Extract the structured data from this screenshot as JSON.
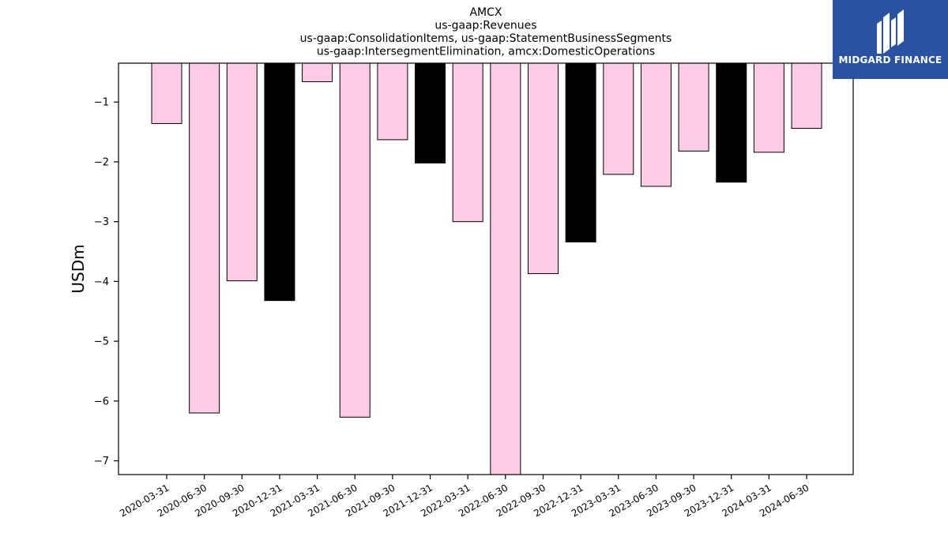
{
  "brand": {
    "name": "MIDGARD FINANCE",
    "colors": {
      "background": "#2952a3",
      "text": "#ffffff"
    },
    "icon": "midgard-logo-icon"
  },
  "chart_data": {
    "type": "bar",
    "title_lines": [
      "AMCX",
      "us-gaap:Revenues",
      "us-gaap:ConsolidationItems, us-gaap:StatementBusinessSegments",
      "us-gaap:IntersegmentElimination, amcx:DomesticOperations"
    ],
    "xlabel": "",
    "ylabel": "USDm",
    "ylim": [
      -7.23,
      -0.35
    ],
    "yticks": [
      -1,
      -2,
      -3,
      -4,
      -5,
      -6,
      -7
    ],
    "ytick_labels": [
      "−1",
      "−2",
      "−3",
      "−4",
      "−5",
      "−6",
      "−7"
    ],
    "categories": [
      "2020-03-31",
      "2020-06-30",
      "2020-09-30",
      "2020-12-31",
      "2021-03-31",
      "2021-06-30",
      "2021-09-30",
      "2021-12-31",
      "2022-03-31",
      "2022-06-30",
      "2022-09-30",
      "2022-12-31",
      "2023-03-31",
      "2023-06-30",
      "2023-09-30",
      "2023-12-31",
      "2024-03-31",
      "2024-06-30"
    ],
    "values": [
      -1.36,
      -6.2,
      -3.99,
      -4.32,
      -0.66,
      -6.27,
      -1.63,
      -2.02,
      -3.0,
      -7.23,
      -3.87,
      -3.34,
      -2.21,
      -2.41,
      -1.82,
      -2.34,
      -1.84,
      -1.44
    ],
    "bar_colors": [
      "#fccce6",
      "#fccce6",
      "#fccce6",
      "#000000",
      "#fccce6",
      "#fccce6",
      "#fccce6",
      "#000000",
      "#fccce6",
      "#fccce6",
      "#fccce6",
      "#000000",
      "#fccce6",
      "#fccce6",
      "#fccce6",
      "#000000",
      "#fccce6",
      "#fccce6"
    ],
    "grid": false,
    "legend": "none"
  }
}
